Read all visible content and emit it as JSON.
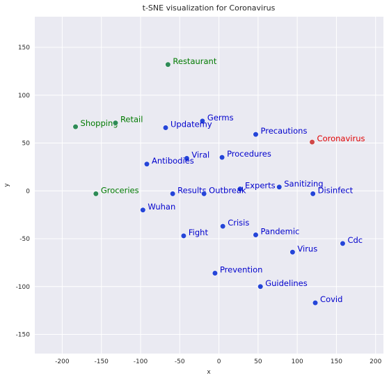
{
  "chart_data": {
    "type": "scatter",
    "title": "t-SNE visualization for Coronavirus",
    "xlabel": "x",
    "ylabel": "y",
    "xlim": [
      -235,
      210
    ],
    "ylim": [
      -170,
      182
    ],
    "xticks": [
      -200,
      -150,
      -100,
      -50,
      0,
      50,
      100,
      150,
      200
    ],
    "yticks": [
      -150,
      -100,
      -50,
      0,
      50,
      100,
      150
    ],
    "grid": true,
    "colors": {
      "background": "#eaeaf2",
      "grid": "#ffffff",
      "blue_marker": "#2545d8",
      "blue_text": "#0000cc",
      "green": "#2e8b57",
      "green_text": "#007a00",
      "red_marker": "#d04848",
      "red_text": "#e00000"
    },
    "points": [
      {
        "label": "Coronavirus",
        "x": 119,
        "y": 51,
        "group": "red"
      },
      {
        "label": "Restaurant",
        "x": -65,
        "y": 132,
        "group": "green"
      },
      {
        "label": "Shopping",
        "x": -183,
        "y": 67,
        "group": "green"
      },
      {
        "label": "Retail",
        "x": -132,
        "y": 71,
        "group": "green"
      },
      {
        "label": "Groceries",
        "x": -157,
        "y": -3,
        "group": "green"
      },
      {
        "label": "Germs",
        "x": -21,
        "y": 73,
        "group": "blue"
      },
      {
        "label": "Updatemy",
        "x": -68,
        "y": 66,
        "group": "blue"
      },
      {
        "label": "Precautions",
        "x": 47,
        "y": 59,
        "group": "blue"
      },
      {
        "label": "Viral",
        "x": -41,
        "y": 34,
        "group": "blue"
      },
      {
        "label": "Procedures",
        "x": 4,
        "y": 35,
        "group": "blue"
      },
      {
        "label": "Antibodies",
        "x": -92,
        "y": 28,
        "group": "blue"
      },
      {
        "label": "Experts",
        "x": 27,
        "y": 2,
        "group": "blue"
      },
      {
        "label": "Sanitizing",
        "x": 77,
        "y": 4,
        "group": "blue"
      },
      {
        "label": "Disinfect",
        "x": 120,
        "y": -3,
        "group": "blue"
      },
      {
        "label": "Results",
        "x": -59,
        "y": -3,
        "group": "blue"
      },
      {
        "label": "Outbreak",
        "x": -19,
        "y": -3,
        "group": "blue"
      },
      {
        "label": "Wuhan",
        "x": -97,
        "y": -20,
        "group": "blue"
      },
      {
        "label": "Crisis",
        "x": 5,
        "y": -37,
        "group": "blue"
      },
      {
        "label": "Fight",
        "x": -45,
        "y": -47,
        "group": "blue"
      },
      {
        "label": "Pandemic",
        "x": 47,
        "y": -46,
        "group": "blue"
      },
      {
        "label": "Cdc",
        "x": 158,
        "y": -55,
        "group": "blue"
      },
      {
        "label": "Virus",
        "x": 94,
        "y": -64,
        "group": "blue"
      },
      {
        "label": "Prevention",
        "x": -5,
        "y": -86,
        "group": "blue"
      },
      {
        "label": "Guidelines",
        "x": 53,
        "y": -100,
        "group": "blue"
      },
      {
        "label": "Covid",
        "x": 123,
        "y": -117,
        "group": "blue"
      }
    ]
  }
}
